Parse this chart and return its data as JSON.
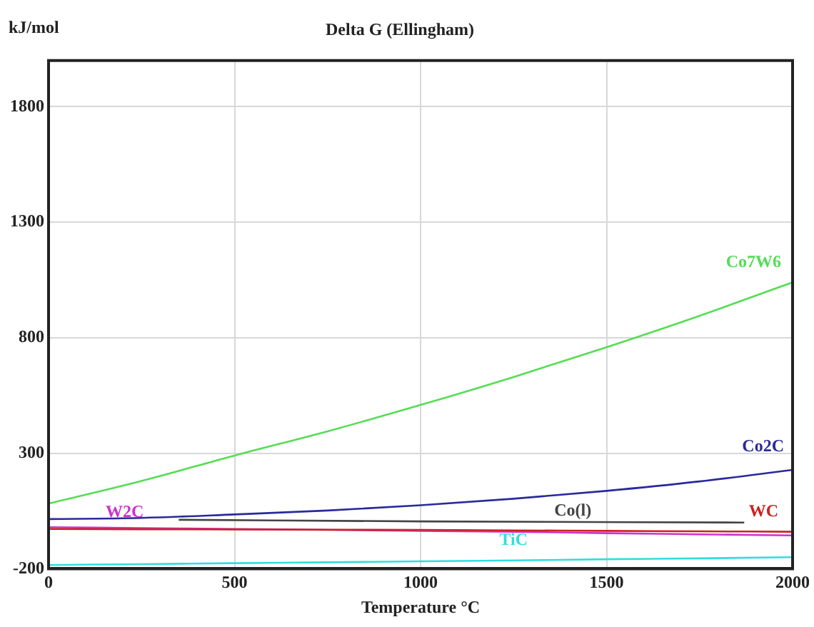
{
  "chart_data": {
    "type": "line",
    "title": "Delta G (Ellingham)",
    "xlabel": "Temperature °C",
    "ylabel": "kJ/mol",
    "xlim": [
      0,
      2000
    ],
    "xticks": [
      0,
      500,
      1000,
      1500,
      2000
    ],
    "ylim": [
      -200,
      2000
    ],
    "yticks": [
      -200,
      300,
      800,
      1300,
      1800
    ],
    "grid": true,
    "legend": false,
    "marker": "none",
    "line_style": "solid",
    "x": [
      0,
      250,
      500,
      750,
      1000,
      1250,
      1500,
      1750,
      2000
    ],
    "series": [
      {
        "name": "Co7W6",
        "color": "#55dd55",
        "values": [
          82,
          180,
          290,
          395,
          509,
          630,
          759,
          895,
          1040
        ]
      },
      {
        "name": "Co2C",
        "color": "#2a2a9a",
        "values": [
          15,
          20,
          35,
          52,
          75,
          103,
          137,
          178,
          228
        ]
      },
      {
        "name": "Co(l)",
        "color": "#444444",
        "x": [
          350,
          1000,
          1870
        ],
        "values": [
          12,
          5,
          0
        ]
      },
      {
        "name": "WC",
        "color": "#cc2222",
        "values": [
          -28,
          -29,
          -30,
          -31,
          -32,
          -34,
          -36,
          -38,
          -40
        ]
      },
      {
        "name": "W2C",
        "color": "#cc33cc",
        "values": [
          -20,
          -24,
          -28,
          -32,
          -36,
          -40,
          -46,
          -51,
          -56
        ]
      },
      {
        "name": "TiC",
        "color": "#33dddd",
        "values": [
          -184,
          -180,
          -176,
          -172,
          -168,
          -164,
          -159,
          -155,
          -150
        ]
      }
    ]
  }
}
